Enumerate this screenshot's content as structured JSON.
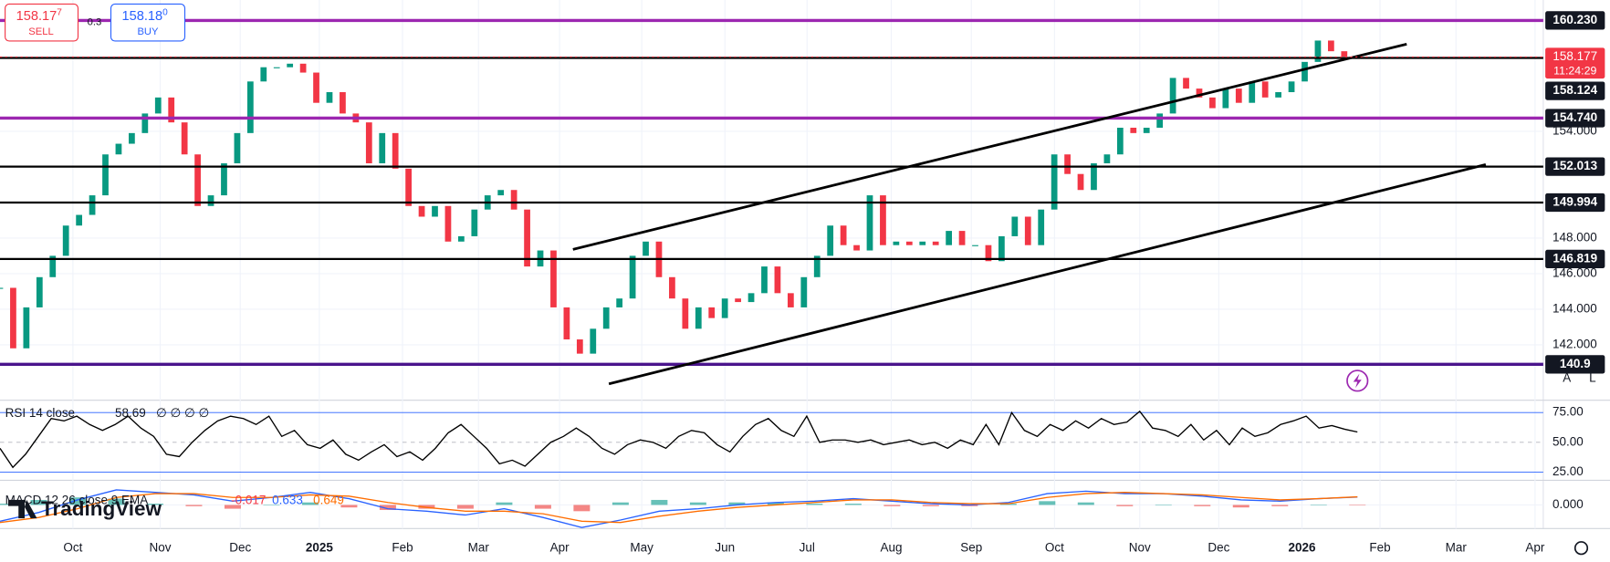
{
  "toolbar": {
    "sell": {
      "price": "158.17",
      "pipette": "7",
      "label": "SELL"
    },
    "spread": "0.3",
    "buy": {
      "price": "158.18",
      "pipette": "0",
      "label": "BUY"
    }
  },
  "time_axis": [
    "Oct",
    "Nov",
    "Dec",
    "2025",
    "Feb",
    "Mar",
    "Apr",
    "May",
    "Jun",
    "Jul",
    "Aug",
    "Sep",
    "Oct",
    "Nov",
    "Dec",
    "2026",
    "Feb",
    "Mar",
    "Apr"
  ],
  "scale_buttons": [
    "A",
    "L"
  ],
  "logo": "TradingView",
  "chart_data": [
    {
      "type": "candlestick",
      "up_color": "#089981",
      "down_color": "#f23645",
      "values": [
        145.2,
        141.8,
        144.1,
        145.8,
        147.0,
        148.7,
        149.3,
        150.4,
        152.7,
        153.3,
        153.9,
        155.0,
        155.9,
        154.5,
        152.7,
        149.8,
        150.4,
        152.2,
        153.9,
        156.8,
        157.6,
        157.6,
        157.8,
        157.3,
        155.6,
        156.2,
        155.0,
        154.5,
        152.2,
        153.9,
        151.9,
        149.8,
        149.2,
        149.8,
        147.8,
        148.1,
        149.6,
        150.4,
        150.7,
        149.6,
        146.4,
        147.3,
        144.1,
        142.3,
        141.5,
        142.9,
        144.1,
        144.6,
        147.0,
        147.8,
        145.8,
        144.6,
        142.9,
        144.1,
        143.5,
        144.6,
        144.4,
        144.9,
        146.4,
        144.9,
        144.1,
        145.8,
        147.0,
        148.7,
        147.6,
        147.3,
        150.4,
        147.6,
        147.8,
        147.6,
        147.8,
        147.6,
        148.4,
        147.6,
        147.6,
        146.7,
        148.1,
        149.2,
        147.6,
        149.6,
        152.7,
        151.6,
        150.7,
        152.2,
        152.7,
        154.2,
        153.9,
        154.2,
        155.0,
        157.0,
        156.4,
        155.9,
        155.3,
        156.4,
        155.6,
        156.8,
        155.9,
        156.2,
        156.8,
        157.9,
        159.1,
        158.5,
        158.2,
        158.177
      ],
      "ylim": [
        138.88,
        161.38
      ],
      "yticks": [
        {
          "value": 154,
          "label": "154.000"
        },
        {
          "value": 148,
          "label": "148.000"
        },
        {
          "value": 146,
          "label": "146.000"
        },
        {
          "value": 144,
          "label": "144.000"
        },
        {
          "value": 142,
          "label": "142.000"
        }
      ],
      "last_price": {
        "value": 158.177,
        "label": "158.177"
      },
      "countdown": "11:24:29",
      "levels": [
        {
          "value": {
            "value": 160.23,
            "label": "160.230"
          },
          "color": "#9c27b0"
        },
        {
          "value": 158.124,
          "color": "#000000"
        },
        {
          "value": {
            "value": 154.74,
            "label": "154.740"
          },
          "color": "#9c27b0"
        },
        {
          "value": 152.013,
          "color": "#000000"
        },
        {
          "value": 149.994,
          "color": "#000000"
        },
        {
          "value": 146.819,
          "color": "#000000"
        },
        {
          "value": 140.9,
          "color": "#4a148c"
        }
      ],
      "trendlines": [
        {
          "start": 147.36,
          "end": 158.9
        },
        {
          "start": 139.8,
          "end": 152.13
        }
      ]
    },
    {
      "type": "line",
      "title": "RSI 14 close",
      "readout": "58.69",
      "na": "∅ ∅ ∅ ∅",
      "color": "#000000",
      "values": [
        45,
        29,
        40,
        55,
        70,
        68,
        72,
        65,
        60,
        65,
        72,
        62,
        55,
        40,
        38,
        50,
        60,
        68,
        72,
        70,
        65,
        72,
        55,
        60,
        48,
        45,
        52,
        40,
        35,
        42,
        48,
        38,
        42,
        35,
        45,
        58,
        65,
        55,
        45,
        32,
        35,
        30,
        40,
        50,
        55,
        62,
        55,
        45,
        40,
        48,
        52,
        50,
        45,
        55,
        60,
        58,
        48,
        42,
        55,
        65,
        70,
        60,
        55,
        72,
        50,
        52,
        52,
        50,
        52,
        48,
        50,
        52,
        48,
        50,
        45,
        52,
        48,
        65,
        48,
        75,
        60,
        55,
        65,
        60,
        68,
        62,
        70,
        65,
        67,
        76,
        62,
        60,
        55,
        65,
        52,
        60,
        48,
        62,
        55,
        58,
        65,
        68,
        72,
        62,
        64,
        61,
        58.69
      ],
      "ylim": [
        18.1,
        83.6
      ],
      "yticks": [
        {
          "value": 75,
          "label": "75.00"
        },
        {
          "value": 50,
          "label": "50.00"
        },
        {
          "value": 25,
          "label": "25.00"
        }
      ]
    },
    {
      "type": "macd",
      "title": "MACD 12 26 close 9 EMA",
      "readout": [
        "-0.017",
        "0.633",
        "0.649"
      ],
      "series": [
        {
          "color": "#2962ff",
          "values": [
            -1.3,
            -0.6,
            0.4,
            1.2,
            1.0,
            0.8,
            0.3,
            0.6,
            1.0,
            0.5,
            -0.3,
            -0.5,
            -0.8,
            -0.3,
            -1.0,
            -1.8,
            -1.2,
            -0.5,
            -0.3,
            0.0,
            0.2,
            0.3,
            0.5,
            0.3,
            0.1,
            0.0,
            0.2,
            0.9,
            1.1,
            0.9,
            0.9,
            0.7,
            0.4,
            0.3,
            0.5,
            0.633
          ]
        },
        {
          "color": "#ff6d00",
          "values": [
            -1.4,
            -1.0,
            -0.3,
            0.6,
            0.9,
            0.9,
            0.6,
            0.6,
            0.8,
            0.7,
            0.2,
            -0.2,
            -0.5,
            -0.5,
            -0.7,
            -1.3,
            -1.4,
            -0.9,
            -0.5,
            -0.2,
            0.0,
            0.2,
            0.4,
            0.4,
            0.2,
            0.1,
            0.1,
            0.6,
            0.9,
            1.0,
            0.9,
            0.8,
            0.6,
            0.4,
            0.5,
            0.649
          ]
        }
      ],
      "histogram": [
        0.1,
        0.4,
        0.6,
        0.5,
        0.1,
        -0.1,
        -0.3,
        0.0,
        0.2,
        -0.2,
        -0.4,
        -0.3,
        -0.3,
        0.2,
        -0.3,
        -0.5,
        0.2,
        0.4,
        0.2,
        0.2,
        0.2,
        0.1,
        0.1,
        -0.1,
        -0.1,
        -0.1,
        0.1,
        0.3,
        0.2,
        -0.1,
        0.0,
        -0.1,
        -0.2,
        -0.1,
        0.0,
        -0.017
      ],
      "ylim": [
        -1.8,
        1.8
      ],
      "yticks": [
        {
          "value": 0,
          "label": "0.000"
        }
      ]
    }
  ]
}
